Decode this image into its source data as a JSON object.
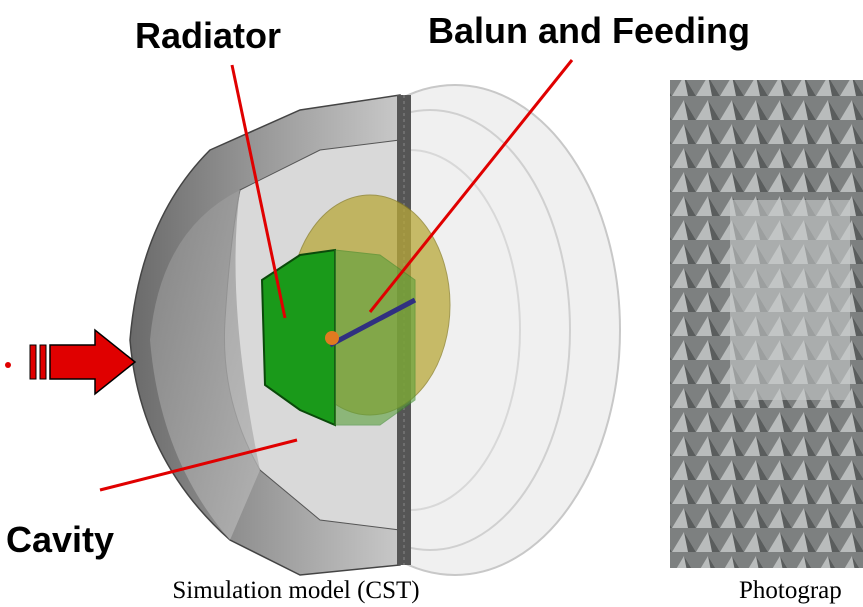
{
  "labels": {
    "radiator": "Radiator",
    "balun": "Balun and Feeding",
    "cavity": "Cavity"
  },
  "captions": {
    "left": "Simulation model (CST)",
    "right": "Photograp"
  }
}
